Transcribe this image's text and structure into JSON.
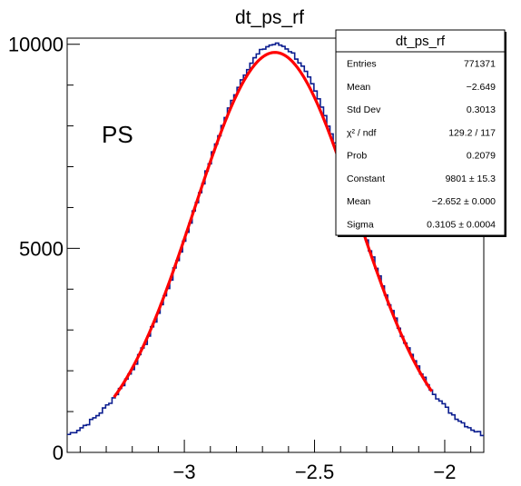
{
  "chart_data": {
    "type": "line",
    "title": "dt_ps_rf",
    "xlabel": "",
    "ylabel": "",
    "xlim": [
      -3.45,
      -1.85
    ],
    "ylim": [
      0,
      10150
    ],
    "x_ticks": [
      -3,
      -2.5,
      -2
    ],
    "x_tick_labels": [
      "−3",
      "−2.5",
      "−2"
    ],
    "y_ticks": [
      0,
      5000,
      10000
    ],
    "y_tick_labels": [
      "0",
      "5000",
      "10000"
    ],
    "annotation": "PS",
    "grid": false,
    "colors": {
      "histogram": "#0b1d8f",
      "fit": "#ff0000"
    },
    "series": [
      {
        "type": "histogram",
        "mean": -2.649,
        "std": 0.3013,
        "peak": 10000,
        "x_range": [
          -3.45,
          -1.85
        ]
      },
      {
        "type": "gaussian_fit",
        "constant": 9801,
        "mean": -2.652,
        "sigma": 0.3105,
        "x_range": [
          -3.27,
          -2.05
        ]
      }
    ],
    "stats_box": {
      "title": "dt_ps_rf",
      "rows": [
        {
          "label": "Entries",
          "value": "771371"
        },
        {
          "label": "Mean",
          "value": "−2.649"
        },
        {
          "label": "Std Dev",
          "value": "0.3013"
        },
        {
          "label": "χ² / ndf",
          "value": "129.2 / 117"
        },
        {
          "label": "Prob",
          "value": "0.2079"
        },
        {
          "label": "Constant",
          "value": "9801 ± 15.3"
        },
        {
          "label": "Mean",
          "value": "−2.652 ± 0.000"
        },
        {
          "label": "Sigma",
          "value": "0.3105 ± 0.0004"
        }
      ]
    }
  }
}
